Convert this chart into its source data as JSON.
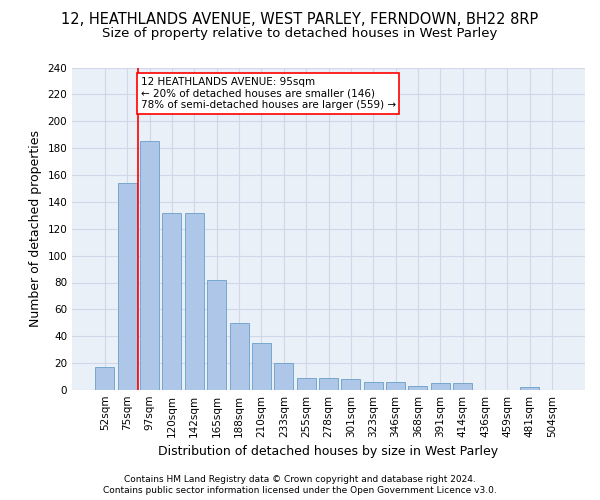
{
  "title_line1": "12, HEATHLANDS AVENUE, WEST PARLEY, FERNDOWN, BH22 8RP",
  "title_line2": "Size of property relative to detached houses in West Parley",
  "xlabel": "Distribution of detached houses by size in West Parley",
  "ylabel": "Number of detached properties",
  "bar_categories": [
    "52sqm",
    "75sqm",
    "97sqm",
    "120sqm",
    "142sqm",
    "165sqm",
    "188sqm",
    "210sqm",
    "233sqm",
    "255sqm",
    "278sqm",
    "301sqm",
    "323sqm",
    "346sqm",
    "368sqm",
    "391sqm",
    "414sqm",
    "436sqm",
    "459sqm",
    "481sqm",
    "504sqm"
  ],
  "bar_values": [
    17,
    154,
    185,
    132,
    132,
    82,
    50,
    35,
    20,
    9,
    9,
    8,
    6,
    6,
    3,
    5,
    5,
    0,
    0,
    2,
    0
  ],
  "bar_color": "#aec6e8",
  "bar_edge_color": "#6a9fc8",
  "annotation_text": "12 HEATHLANDS AVENUE: 95sqm\n← 20% of detached houses are smaller (146)\n78% of semi-detached houses are larger (559) →",
  "annotation_box_color": "white",
  "annotation_box_edge": "red",
  "vline_color": "red",
  "ylim": [
    0,
    240
  ],
  "yticks": [
    0,
    20,
    40,
    60,
    80,
    100,
    120,
    140,
    160,
    180,
    200,
    220,
    240
  ],
  "grid_color": "#d0d8e8",
  "bg_color": "#eaf0f8",
  "footnote_line1": "Contains HM Land Registry data © Crown copyright and database right 2024.",
  "footnote_line2": "Contains public sector information licensed under the Open Government Licence v3.0.",
  "title_fontsize": 10.5,
  "subtitle_fontsize": 9.5,
  "axis_label_fontsize": 9,
  "tick_fontsize": 7.5,
  "annotation_fontsize": 7.5,
  "footnote_fontsize": 6.5
}
